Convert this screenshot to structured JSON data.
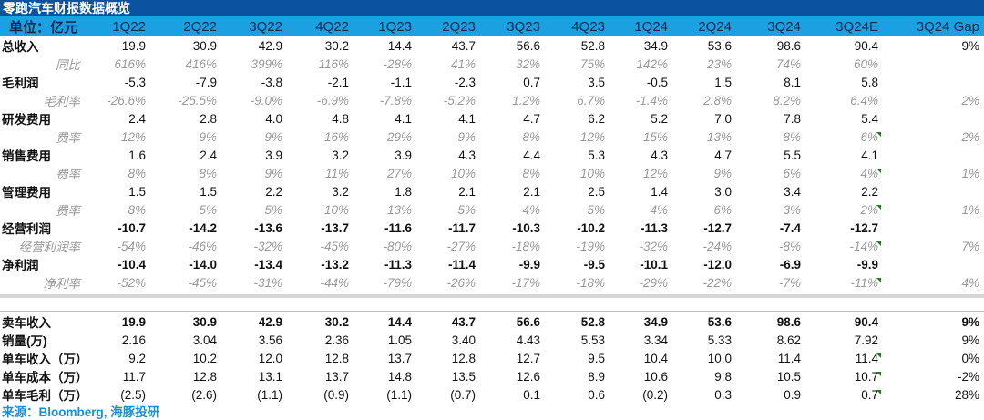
{
  "title": "零跑汽车财报数据概览",
  "header": [
    "单位：亿元",
    "1Q22",
    "2Q22",
    "3Q22",
    "4Q22",
    "1Q23",
    "2Q23",
    "3Q23",
    "4Q23",
    "1Q24",
    "2Q24",
    "3Q24",
    "3Q24E",
    "3Q24 Gap"
  ],
  "rows_top": [
    {
      "label": "总收入",
      "type": "main",
      "values": [
        "19.9",
        "30.9",
        "42.9",
        "30.2",
        "14.4",
        "43.7",
        "56.6",
        "52.8",
        "34.9",
        "53.6",
        "98.6",
        "90.4"
      ],
      "gap": "9%"
    },
    {
      "label": "同比",
      "type": "sub",
      "values": [
        "616%",
        "416%",
        "399%",
        "116%",
        "-28%",
        "41%",
        "32%",
        "75%",
        "142%",
        "23%",
        "74%",
        "60%"
      ],
      "gap": ""
    },
    {
      "label": "毛利润",
      "type": "main",
      "values": [
        "-5.3",
        "-7.9",
        "-3.8",
        "-2.1",
        "-1.1",
        "-2.3",
        "0.7",
        "3.5",
        "-0.5",
        "1.5",
        "8.1",
        "5.8"
      ],
      "gap": ""
    },
    {
      "label": "毛利率",
      "type": "sub",
      "values": [
        "-26.6%",
        "-25.5%",
        "-9.0%",
        "-6.9%",
        "-7.8%",
        "-5.2%",
        "1.2%",
        "6.7%",
        "-1.4%",
        "2.8%",
        "8.2%",
        "6.4%"
      ],
      "gap": "2%"
    },
    {
      "label": "研发费用",
      "type": "main",
      "values": [
        "2.4",
        "2.8",
        "4.0",
        "4.8",
        "4.1",
        "4.1",
        "4.7",
        "6.2",
        "5.2",
        "7.0",
        "7.8",
        "5.4"
      ],
      "gap": ""
    },
    {
      "label": "费率",
      "type": "sub",
      "values": [
        "12%",
        "9%",
        "9%",
        "16%",
        "29%",
        "9%",
        "8%",
        "12%",
        "15%",
        "13%",
        "8%",
        "6%"
      ],
      "gap": "2%",
      "marker": true
    },
    {
      "label": "销售费用",
      "type": "main",
      "values": [
        "1.6",
        "2.4",
        "3.9",
        "3.2",
        "3.9",
        "4.3",
        "4.4",
        "5.3",
        "4.3",
        "4.7",
        "5.5",
        "4.1"
      ],
      "gap": ""
    },
    {
      "label": "费率",
      "type": "sub",
      "values": [
        "8%",
        "8%",
        "9%",
        "11%",
        "27%",
        "10%",
        "8%",
        "10%",
        "12%",
        "9%",
        "6%",
        "4%"
      ],
      "gap": "1%",
      "marker": true
    },
    {
      "label": "管理费用",
      "type": "main",
      "values": [
        "1.5",
        "1.5",
        "2.2",
        "3.2",
        "1.8",
        "2.1",
        "2.1",
        "2.5",
        "1.4",
        "3.0",
        "3.4",
        "2.2"
      ],
      "gap": ""
    },
    {
      "label": "费率",
      "type": "sub",
      "values": [
        "8%",
        "5%",
        "5%",
        "10%",
        "13%",
        "5%",
        "4%",
        "5%",
        "4%",
        "6%",
        "3%",
        "2%"
      ],
      "gap": "1%",
      "marker": true
    },
    {
      "label": "经营利润",
      "type": "main bold",
      "values": [
        "-10.7",
        "-14.2",
        "-13.6",
        "-13.7",
        "-11.6",
        "-11.7",
        "-10.3",
        "-10.2",
        "-11.3",
        "-12.7",
        "-7.4",
        "-12.7"
      ],
      "gap": ""
    },
    {
      "label": "经营利润率",
      "type": "sub",
      "values": [
        "-54%",
        "-46%",
        "-32%",
        "-45%",
        "-80%",
        "-27%",
        "-18%",
        "-19%",
        "-32%",
        "-24%",
        "-8%",
        "-14%"
      ],
      "gap": "7%",
      "marker": true
    },
    {
      "label": "净利润",
      "type": "main bold",
      "values": [
        "-10.4",
        "-14.0",
        "-13.4",
        "-13.2",
        "-11.3",
        "-11.4",
        "-9.9",
        "-9.5",
        "-10.1",
        "-12.0",
        "-6.9",
        "-9.9"
      ],
      "gap": ""
    },
    {
      "label": "净利率",
      "type": "sub",
      "values": [
        "-52%",
        "-45%",
        "-31%",
        "-44%",
        "-79%",
        "-26%",
        "-17%",
        "-18%",
        "-29%",
        "-22%",
        "-7%",
        "-11%"
      ],
      "gap": "4%",
      "marker": true
    }
  ],
  "rows_bottom": [
    {
      "label": "卖车收入",
      "type": "main bold",
      "values": [
        "19.9",
        "30.9",
        "42.9",
        "30.2",
        "14.4",
        "43.7",
        "56.6",
        "52.8",
        "34.9",
        "53.6",
        "98.6",
        "90.4"
      ],
      "gap": "9%"
    },
    {
      "label": "销量(万)",
      "type": "main",
      "values": [
        "2.16",
        "3.04",
        "3.56",
        "2.36",
        "1.05",
        "3.40",
        "4.43",
        "5.53",
        "3.34",
        "5.33",
        "8.62",
        "7.92"
      ],
      "gap": "9%"
    },
    {
      "label": "单车收入（万）",
      "type": "main",
      "values": [
        "9.2",
        "10.2",
        "12.0",
        "12.8",
        "13.7",
        "12.8",
        "12.7",
        "9.5",
        "10.4",
        "10.0",
        "11.4",
        "11.4"
      ],
      "gap": "0%",
      "marker": true
    },
    {
      "label": "单车成本（万）",
      "type": "main",
      "values": [
        "11.7",
        "12.8",
        "13.1",
        "13.7",
        "14.8",
        "13.5",
        "12.6",
        "8.9",
        "10.6",
        "9.8",
        "10.5",
        "10.7"
      ],
      "gap": "-2%",
      "marker": true
    },
    {
      "label": "单车毛利（万）",
      "type": "main",
      "values": [
        "(2.5)",
        "(2.6)",
        "(1.1)",
        "(0.9)",
        "(1.1)",
        "(0.7)",
        "0.1",
        "0.6",
        "(0.2)",
        "0.3",
        "0.9",
        "0.7"
      ],
      "gap": "28%",
      "marker": true
    }
  ],
  "source": "来源：Bloomberg, 海豚投研",
  "colors": {
    "title_bg": "#0b52a0",
    "header_bg": "#1ba1e2",
    "gap": "#e8141c",
    "source": "#1b8fd6"
  }
}
